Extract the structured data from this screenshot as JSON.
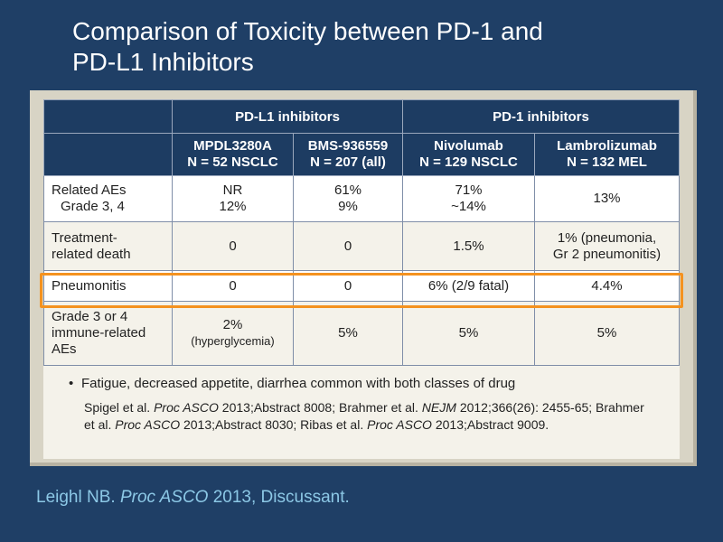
{
  "slide": {
    "title_line1": "Comparison of Toxicity between PD-1 and",
    "title_line2": "PD-L1 Inhibitors"
  },
  "table": {
    "group_headers": [
      "PD-L1 inhibitors",
      "PD-1 inhibitors"
    ],
    "columns": [
      {
        "name": "MPDL3280A",
        "n": "N = 52 NSCLC"
      },
      {
        "name": "BMS-936559",
        "n": "N = 207 (all)"
      },
      {
        "name": "Nivolumab",
        "n": "N = 129 NSCLC"
      },
      {
        "name": "Lambrolizumab",
        "n": "N = 132 MEL"
      }
    ],
    "rows": [
      {
        "label": [
          "Related AEs",
          "Grade 3, 4"
        ],
        "cells": [
          [
            "NR",
            "12%"
          ],
          [
            "61%",
            "9%"
          ],
          [
            "71%",
            "~14%"
          ],
          [
            "13%"
          ]
        ]
      },
      {
        "label": [
          "Treatment-",
          "related death"
        ],
        "cells": [
          [
            "0"
          ],
          [
            "0"
          ],
          [
            "1.5%"
          ],
          [
            "1% (pneumonia,",
            "Gr 2 pneumonitis)"
          ]
        ]
      },
      {
        "label": [
          "Pneumonitis"
        ],
        "cells": [
          [
            "0"
          ],
          [
            "0"
          ],
          [
            "6% (2/9 fatal)"
          ],
          [
            "4.4%"
          ]
        ],
        "highlighted": true
      },
      {
        "label": [
          "Grade 3 or 4",
          "immune-related",
          "AEs"
        ],
        "cells": [
          [
            "2%",
            "(hyperglycemia)"
          ],
          [
            "5%"
          ],
          [
            "5%"
          ],
          [
            "5%"
          ]
        ]
      }
    ]
  },
  "bullet": "Fatigue, decreased appetite, diarrhea common with both classes of drug",
  "references": {
    "p1": "Spigel et al. ",
    "j1": "Proc ASCO",
    "p2": " 2013;Abstract 8008; Brahmer et al. ",
    "j2": "NEJM",
    "p3": " 2012;366(26): 2455-65; Brahmer et al. ",
    "j3": "Proc ASCO",
    "p4": " 2013;Abstract 8030; Ribas et al. ",
    "j4": "Proc ASCO",
    "p5": " 2013;Abstract 9009."
  },
  "citation": {
    "author": "Leighl NB. ",
    "journal": "Proc ASCO",
    "rest": " 2013, Discussant."
  },
  "colors": {
    "background": "#1f3f66",
    "header": "#1d3c62",
    "highlight": "#f4921f",
    "citation": "#8cc8e6"
  }
}
